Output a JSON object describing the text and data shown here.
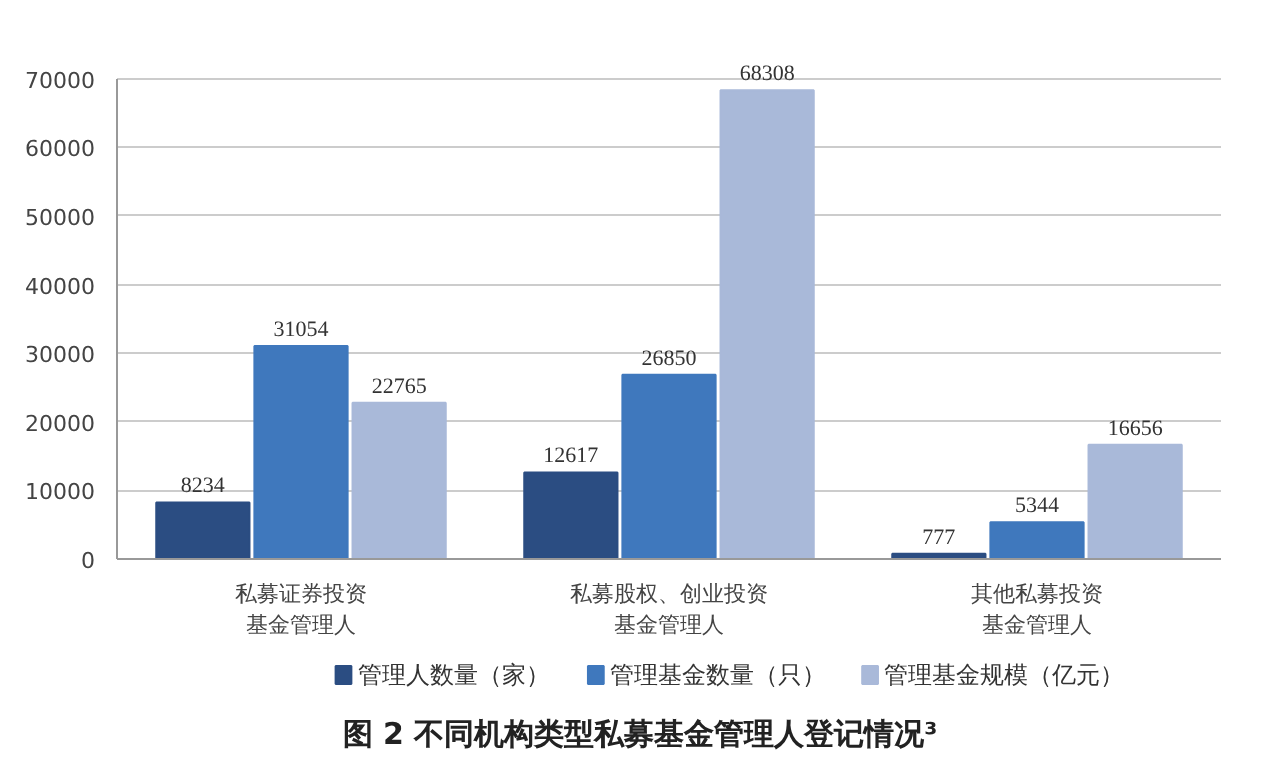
{
  "chart_data": {
    "type": "bar",
    "title": "图 2 不同机构类型私募基金管理人登记情况³",
    "categories": [
      "私募证券投资基金管理人",
      "私募股权、创业投资基金管理人",
      "其他私募投资基金管理人"
    ],
    "series": [
      {
        "name": "管理人数量（家）",
        "color": "#2b4d82",
        "values": [
          8234,
          12617,
          777
        ]
      },
      {
        "name": "管理基金数量（只）",
        "color": "#3f78bd",
        "values": [
          31054,
          26850,
          5344
        ]
      },
      {
        "name": "管理基金规模（亿元）",
        "color": "#a9b9d9",
        "values": [
          22765,
          68308,
          16656
        ]
      }
    ],
    "ylim": [
      0,
      70000
    ],
    "yticks": [
      0,
      10000,
      20000,
      30000,
      40000,
      50000,
      60000,
      70000
    ],
    "grid": "y",
    "legend": "bottom",
    "data_labels": true
  }
}
